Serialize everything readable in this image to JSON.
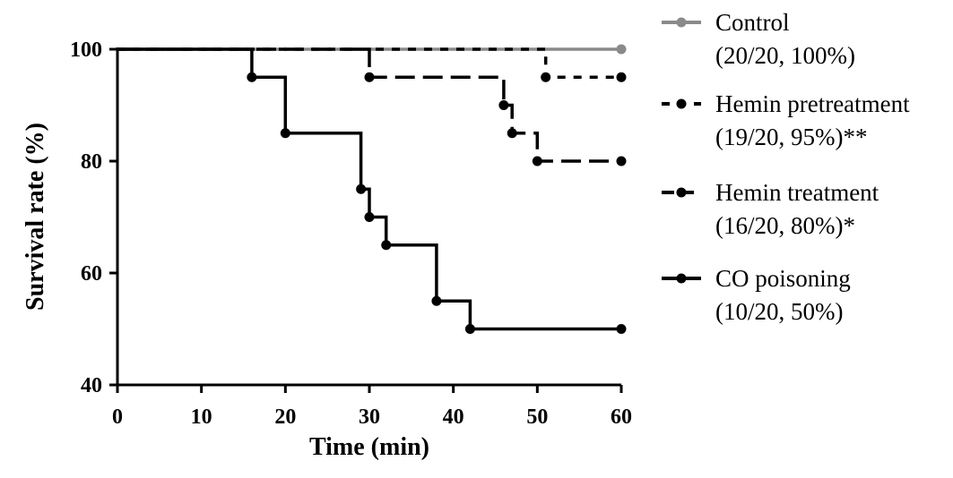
{
  "chart_data": {
    "type": "line",
    "subtype": "kaplan-meier step",
    "xlabel": "Time (min)",
    "ylabel": "Survival rate (%)",
    "xlim": [
      0,
      60
    ],
    "ylim": [
      40,
      100
    ],
    "xticks": [
      0,
      10,
      20,
      30,
      40,
      50,
      60
    ],
    "yticks": [
      40,
      60,
      80,
      100
    ],
    "grid": false,
    "legend_position": "right",
    "series": [
      {
        "key": "control",
        "name": "Control",
        "detail": "(20/20, 100%)",
        "color": "#8a8a8a",
        "dash": "solid",
        "points": [
          [
            0,
            100
          ],
          [
            60,
            100
          ]
        ],
        "markers": [
          [
            60,
            100
          ]
        ]
      },
      {
        "key": "pretreatment",
        "name": "Hemin pretreatment",
        "detail": "(19/20, 95%)**",
        "color": "#000000",
        "dash": "dotted",
        "points": [
          [
            0,
            100
          ],
          [
            51,
            100
          ],
          [
            51,
            95
          ],
          [
            60,
            95
          ]
        ],
        "markers": [
          [
            51,
            95
          ],
          [
            60,
            95
          ]
        ]
      },
      {
        "key": "treatment",
        "name": "Hemin treatment",
        "detail": "(16/20, 80%)*",
        "color": "#000000",
        "dash": "dashed",
        "points": [
          [
            0,
            100
          ],
          [
            30,
            100
          ],
          [
            30,
            95
          ],
          [
            46,
            95
          ],
          [
            46,
            90
          ],
          [
            47,
            90
          ],
          [
            47,
            85
          ],
          [
            50,
            85
          ],
          [
            50,
            80
          ],
          [
            60,
            80
          ]
        ],
        "markers": [
          [
            30,
            95
          ],
          [
            46,
            90
          ],
          [
            47,
            85
          ],
          [
            50,
            80
          ],
          [
            60,
            80
          ]
        ]
      },
      {
        "key": "poisoning",
        "name": "CO poisoning",
        "detail": "(10/20, 50%)",
        "color": "#000000",
        "dash": "solid",
        "points": [
          [
            0,
            100
          ],
          [
            16,
            100
          ],
          [
            16,
            95
          ],
          [
            20,
            95
          ],
          [
            20,
            85
          ],
          [
            29,
            85
          ],
          [
            29,
            75
          ],
          [
            30,
            75
          ],
          [
            30,
            70
          ],
          [
            32,
            70
          ],
          [
            32,
            65
          ],
          [
            38,
            65
          ],
          [
            38,
            55
          ],
          [
            42,
            55
          ],
          [
            42,
            50
          ],
          [
            60,
            50
          ]
        ],
        "markers": [
          [
            16,
            95
          ],
          [
            20,
            85
          ],
          [
            29,
            75
          ],
          [
            30,
            70
          ],
          [
            32,
            65
          ],
          [
            38,
            55
          ],
          [
            42,
            50
          ],
          [
            60,
            50
          ]
        ]
      }
    ]
  }
}
